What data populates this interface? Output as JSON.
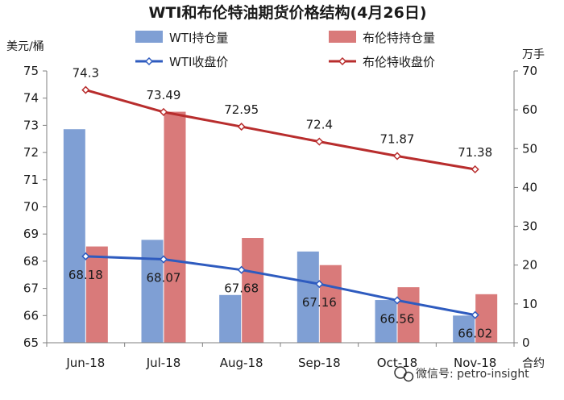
{
  "chart_data": {
    "type": "bar",
    "title": "WTI和布伦特油期货价格结构(4月26日)",
    "categories": [
      "Jun-18",
      "Jul-18",
      "Aug-18",
      "Sep-18",
      "Oct-18",
      "Nov-18"
    ],
    "y_left": {
      "unit": "美元/桶",
      "range": [
        65,
        75
      ],
      "ticks": [
        65,
        66,
        67,
        68,
        69,
        70,
        71,
        72,
        73,
        74,
        75
      ]
    },
    "y_right": {
      "unit": "万手",
      "range": [
        0,
        70
      ],
      "ticks": [
        0,
        10,
        20,
        30,
        40,
        50,
        60,
        70
      ]
    },
    "x_unit": "合约",
    "series": [
      {
        "name": "WTI持仓量",
        "kind": "bar",
        "axis": "right",
        "color": "#7f9fd4",
        "values": [
          55,
          26.5,
          12.3,
          23.5,
          11,
          7
        ]
      },
      {
        "name": "布伦特持仓量",
        "kind": "bar",
        "axis": "right",
        "color": "#d97a7a",
        "values": [
          24.8,
          59.5,
          27,
          20,
          14.3,
          12.5
        ]
      },
      {
        "name": "WTI收盘价",
        "kind": "line",
        "axis": "left",
        "color": "#2e5bbf",
        "values": [
          68.18,
          68.07,
          67.68,
          67.16,
          66.56,
          66.02
        ]
      },
      {
        "name": "布伦特收盘价",
        "kind": "line",
        "axis": "left",
        "color": "#b82d2d",
        "values": [
          74.3,
          73.49,
          72.95,
          72.4,
          71.87,
          71.38
        ]
      }
    ],
    "grid": false,
    "legend": "top"
  },
  "watermark": "微信号: petro-insight"
}
